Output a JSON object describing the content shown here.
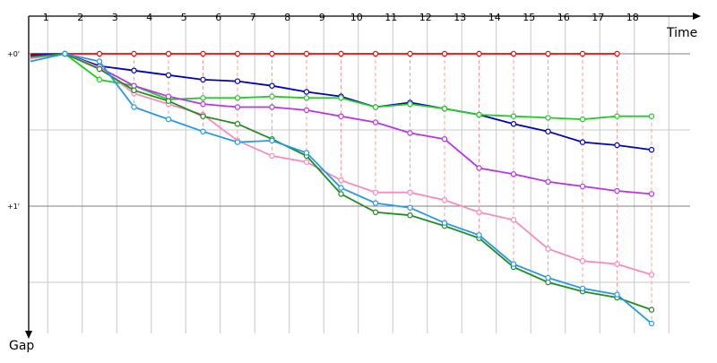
{
  "chart_data": {
    "type": "line",
    "xlabel": "Time",
    "ylabel": "Gap",
    "x": [
      1,
      2,
      3,
      4,
      5,
      6,
      7,
      8,
      9,
      10,
      11,
      12,
      13,
      14,
      15,
      16,
      17,
      18
    ],
    "y_ticks": [
      "+0'",
      "+1'"
    ],
    "ylim_minutes": [
      0,
      1.75
    ],
    "grid": true,
    "colors": {
      "grid": "#c8c8c8",
      "major_grid": "#7f7f7f",
      "sector_links": "#ff9999"
    },
    "series": [
      {
        "color": "#ff0000",
        "points": [
          [
            1,
            0.0
          ],
          [
            2,
            0.0
          ],
          [
            3,
            0.0
          ],
          [
            4,
            0.0
          ],
          [
            5,
            0.0
          ],
          [
            6,
            0.0
          ],
          [
            7,
            0.0
          ],
          [
            8,
            0.0
          ],
          [
            9,
            0.0
          ],
          [
            10,
            0.0
          ],
          [
            11,
            0.0
          ],
          [
            12,
            0.0
          ],
          [
            13,
            0.0
          ],
          [
            14,
            0.0
          ],
          [
            15,
            0.0
          ],
          [
            16,
            0.0
          ],
          [
            17,
            0.0
          ],
          [
            18,
            0.0
          ]
        ]
      },
      {
        "color": "#0000c8",
        "points": [
          [
            1,
            0.01
          ],
          [
            2,
            0.0
          ],
          [
            3,
            0.08
          ],
          [
            4,
            0.11
          ],
          [
            5,
            0.14
          ],
          [
            6,
            0.17
          ],
          [
            7,
            0.18
          ],
          [
            8,
            0.21
          ],
          [
            9,
            0.25
          ],
          [
            10,
            0.28
          ],
          [
            11,
            0.35
          ],
          [
            12,
            0.32
          ],
          [
            13,
            0.36
          ],
          [
            14,
            0.4
          ],
          [
            15,
            0.46
          ],
          [
            16,
            0.51
          ],
          [
            17,
            0.58
          ],
          [
            18,
            0.6
          ],
          [
            19,
            0.63
          ]
        ]
      },
      {
        "color": "#22cc22",
        "points": [
          [
            1,
            0.03
          ],
          [
            2,
            0.0
          ],
          [
            3,
            0.17
          ],
          [
            4,
            0.21
          ],
          [
            5,
            0.3
          ],
          [
            6,
            0.29
          ],
          [
            7,
            0.29
          ],
          [
            8,
            0.28
          ],
          [
            9,
            0.29
          ],
          [
            10,
            0.29
          ],
          [
            11,
            0.35
          ],
          [
            12,
            0.33
          ],
          [
            13,
            0.36
          ],
          [
            14,
            0.4
          ],
          [
            15,
            0.41
          ],
          [
            16,
            0.42
          ],
          [
            17,
            0.43
          ],
          [
            18,
            0.41
          ],
          [
            19,
            0.41
          ]
        ]
      },
      {
        "color": "#bb33ee",
        "points": [
          [
            1,
            0.02
          ],
          [
            2,
            0.0
          ],
          [
            3,
            0.09
          ],
          [
            4,
            0.21
          ],
          [
            5,
            0.28
          ],
          [
            6,
            0.33
          ],
          [
            7,
            0.35
          ],
          [
            8,
            0.35
          ],
          [
            9,
            0.37
          ],
          [
            10,
            0.41
          ],
          [
            11,
            0.45
          ],
          [
            12,
            0.52
          ],
          [
            13,
            0.56
          ],
          [
            14,
            0.75
          ],
          [
            15,
            0.79
          ],
          [
            16,
            0.84
          ],
          [
            17,
            0.87
          ],
          [
            18,
            0.9
          ],
          [
            19,
            0.92
          ]
        ]
      },
      {
        "color": "#ff88bb",
        "points": [
          [
            1,
            0.03
          ],
          [
            2,
            0.0
          ],
          [
            3,
            0.09
          ],
          [
            4,
            0.26
          ],
          [
            5,
            0.33
          ],
          [
            6,
            0.4
          ],
          [
            7,
            0.57
          ],
          [
            8,
            0.67
          ],
          [
            9,
            0.71
          ],
          [
            10,
            0.83
          ],
          [
            11,
            0.91
          ],
          [
            12,
            0.91
          ],
          [
            13,
            0.96
          ],
          [
            14,
            1.04
          ],
          [
            15,
            1.09
          ],
          [
            16,
            1.28
          ],
          [
            17,
            1.36
          ],
          [
            18,
            1.38
          ],
          [
            19,
            1.45
          ]
        ]
      },
      {
        "color": "#228b22",
        "points": [
          [
            1,
            0.02
          ],
          [
            2,
            0.0
          ],
          [
            3,
            0.1
          ],
          [
            4,
            0.24
          ],
          [
            5,
            0.31
          ],
          [
            6,
            0.41
          ],
          [
            7,
            0.46
          ],
          [
            8,
            0.56
          ],
          [
            9,
            0.67
          ],
          [
            10,
            0.92
          ],
          [
            11,
            1.04
          ],
          [
            12,
            1.06
          ],
          [
            13,
            1.13
          ],
          [
            14,
            1.21
          ],
          [
            15,
            1.4
          ],
          [
            16,
            1.5
          ],
          [
            17,
            1.56
          ],
          [
            18,
            1.6
          ],
          [
            19,
            1.68
          ]
        ]
      },
      {
        "color": "#2299ee",
        "points": [
          [
            1,
            0.05
          ],
          [
            2,
            0.0
          ],
          [
            3,
            0.05
          ],
          [
            4,
            0.35
          ],
          [
            5,
            0.43
          ],
          [
            6,
            0.51
          ],
          [
            7,
            0.58
          ],
          [
            8,
            0.57
          ],
          [
            9,
            0.65
          ],
          [
            10,
            0.88
          ],
          [
            11,
            0.98
          ],
          [
            12,
            1.01
          ],
          [
            13,
            1.11
          ],
          [
            14,
            1.19
          ],
          [
            15,
            1.38
          ],
          [
            16,
            1.47
          ],
          [
            17,
            1.54
          ],
          [
            18,
            1.58
          ],
          [
            19,
            1.77
          ]
        ]
      }
    ]
  }
}
